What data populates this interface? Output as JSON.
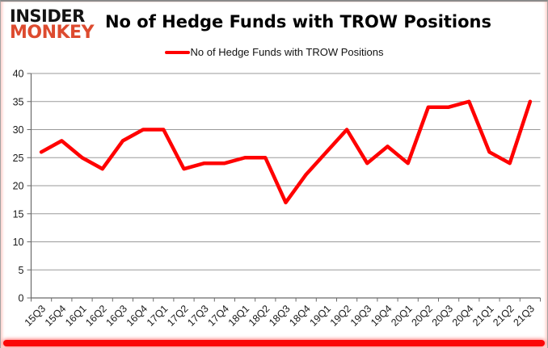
{
  "logo": {
    "line1": "INSIDER",
    "line2": "MONKEY"
  },
  "header": {
    "title": "No of Hedge Funds with TROW Positions"
  },
  "legend": {
    "label": "No of Hedge Funds with TROW Positions"
  },
  "colors": {
    "line": "#ff0000",
    "grid": "#9a9a9a",
    "axis": "#6b6b6b",
    "tick_label": "#1a1a1a",
    "title": "#000000",
    "logo_black": "#141414",
    "logo_red": "#dd4b2f",
    "accent_bar": "#fb0606"
  },
  "chart_data": {
    "type": "line",
    "title": "No of Hedge Funds with TROW Positions",
    "categories": [
      "15Q3",
      "15Q4",
      "16Q1",
      "16Q2",
      "16Q3",
      "16Q4",
      "17Q1",
      "17Q2",
      "17Q3",
      "17Q4",
      "18Q1",
      "18Q2",
      "18Q3",
      "18Q4",
      "19Q1",
      "19Q2",
      "19Q3",
      "19Q4",
      "20Q1",
      "20Q2",
      "20Q3",
      "20Q4",
      "21Q1",
      "21Q2",
      "21Q3"
    ],
    "series": [
      {
        "name": "No of Hedge Funds with TROW Positions",
        "color": "#ff0000",
        "values": [
          26,
          28,
          25,
          23,
          28,
          30,
          30,
          23,
          24,
          24,
          25,
          25,
          17,
          22,
          26,
          30,
          24,
          27,
          24,
          34,
          34,
          35,
          26,
          24,
          35
        ]
      }
    ],
    "xlabel": "",
    "ylabel": "",
    "ylim": [
      0,
      40
    ],
    "ytick_labels": [
      0,
      5,
      10,
      15,
      20,
      25,
      30,
      35,
      40
    ],
    "grid": true,
    "legend_position": "top"
  }
}
